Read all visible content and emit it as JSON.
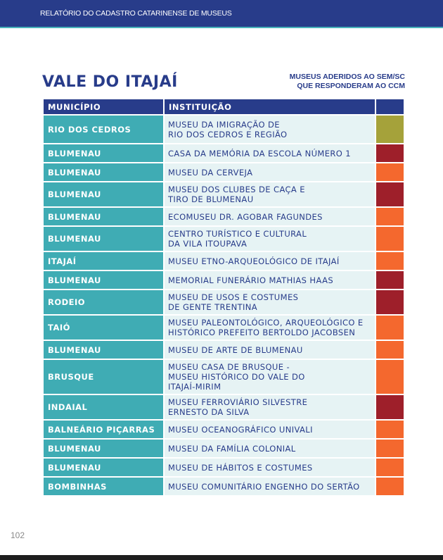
{
  "header": {
    "running_title": "RELATÓRIO DO CADASTRO CATARINENSE DE MUSEUS"
  },
  "section_title": "VALE DO ITAJAÍ",
  "legend": {
    "line1": "MUSEUS ADERIDOS AO SEM/SC",
    "line2": "QUE RESPONDERAM AO CCM"
  },
  "colors": {
    "header": "#283c8a",
    "municipio": "#3facb4",
    "olive": "#a5a23a",
    "red": "#9e1f2a",
    "orange": "#f4682e"
  },
  "table": {
    "columns": [
      "MUNICÍPIO",
      "INSTITUIÇÃO",
      ""
    ],
    "rows": [
      {
        "municipio": "RIO DOS CEDROS",
        "instituicao": "MUSEU DA IMIGRAÇÃO DE\nRIO DOS CEDROS E REGIÃO",
        "status": "olive"
      },
      {
        "municipio": "BLUMENAU",
        "instituicao": "CASA DA MEMÓRIA DA ESCOLA NÚMERO 1",
        "status": "red"
      },
      {
        "municipio": "BLUMENAU",
        "instituicao": "MUSEU DA CERVEJA",
        "status": "orange"
      },
      {
        "municipio": "BLUMENAU",
        "instituicao": "MUSEU DOS CLUBES DE CAÇA E\nTIRO DE BLUMENAU",
        "status": "red"
      },
      {
        "municipio": "BLUMENAU",
        "instituicao": "ECOMUSEU DR. AGOBAR FAGUNDES",
        "status": "orange"
      },
      {
        "municipio": "BLUMENAU",
        "instituicao": "CENTRO TURÍSTICO E CULTURAL\nDA VILA ITOUPAVA",
        "status": "orange"
      },
      {
        "municipio": "ITAJAÍ",
        "instituicao": "MUSEU ETNO-ARQUEOLÓGICO DE ITAJAÍ",
        "status": "orange"
      },
      {
        "municipio": "BLUMENAU",
        "instituicao": "MEMORIAL FUNERÁRIO MATHIAS HAAS",
        "status": "red"
      },
      {
        "municipio": "RODEIO",
        "instituicao": "MUSEU DE USOS E COSTUMES\nDE GENTE TRENTINA",
        "status": "red"
      },
      {
        "municipio": "TAIÓ",
        "instituicao": "MUSEU PALEONTOLÓGICO, ARQUEOLÓGICO E\nHISTÓRICO PREFEITO BERTOLDO JACOBSEN",
        "status": "orange"
      },
      {
        "municipio": "BLUMENAU",
        "instituicao": "MUSEU DE ARTE DE BLUMENAU",
        "status": "orange"
      },
      {
        "municipio": "BRUSQUE",
        "instituicao": "MUSEU CASA DE BRUSQUE -\nMUSEU HISTÓRICO DO VALE DO\nITAJAÍ-MIRIM",
        "status": "orange"
      },
      {
        "municipio": "INDAIAL",
        "instituicao": "MUSEU FERROVIÁRIO SILVESTRE\nERNESTO DA SILVA",
        "status": "red"
      },
      {
        "municipio": "BALNEÁRIO PIÇARRAS",
        "instituicao": "MUSEU OCEANOGRÁFICO UNIVALI",
        "status": "orange"
      },
      {
        "municipio": "BLUMENAU",
        "instituicao": "MUSEU DA FAMÍLIA COLONIAL",
        "status": "orange"
      },
      {
        "municipio": "BLUMENAU",
        "instituicao": "MUSEU DE HÁBITOS E COSTUMES",
        "status": "orange"
      },
      {
        "municipio": "BOMBINHAS",
        "instituicao": "MUSEU COMUNITÁRIO ENGENHO DO SERTÃO",
        "status": "orange"
      }
    ]
  },
  "page_number": "102"
}
